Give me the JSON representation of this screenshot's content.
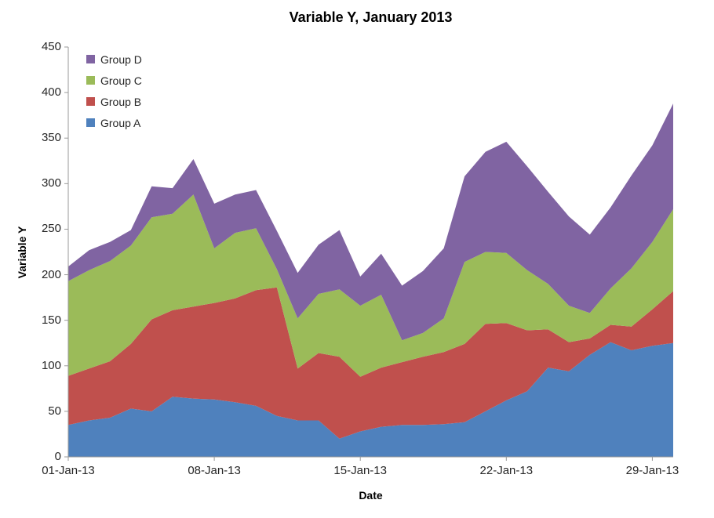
{
  "title": "Variable Y, January 2013",
  "axes": {
    "y": {
      "label": "Variable Y",
      "min": 0,
      "max": 450,
      "step": 50,
      "ticks": [
        0,
        50,
        100,
        150,
        200,
        250,
        300,
        350,
        400,
        450
      ]
    },
    "x": {
      "label": "Date",
      "tick_labels": [
        "01-Jan-13",
        "08-Jan-13",
        "15-Jan-13",
        "22-Jan-13",
        "29-Jan-13"
      ],
      "tick_days": [
        1,
        8,
        15,
        22,
        29
      ]
    }
  },
  "legend": {
    "items": [
      {
        "label": "Group D",
        "color": "#8064A2"
      },
      {
        "label": "Group C",
        "color": "#9BBB59"
      },
      {
        "label": "Group B",
        "color": "#C0504D"
      },
      {
        "label": "Group A",
        "color": "#4F81BD"
      }
    ]
  },
  "style": {
    "axis_line_color": "#9a9a9a",
    "background": "#ffffff"
  },
  "chart_data": {
    "type": "area",
    "stacked": true,
    "title": "Variable Y, January 2013",
    "xlabel": "Date",
    "ylabel": "Variable Y",
    "ylim": [
      0,
      450
    ],
    "grid": false,
    "legend_position": "top-left-inside",
    "x": [
      "01-Jan-13",
      "02-Jan-13",
      "03-Jan-13",
      "04-Jan-13",
      "05-Jan-13",
      "06-Jan-13",
      "07-Jan-13",
      "08-Jan-13",
      "09-Jan-13",
      "10-Jan-13",
      "11-Jan-13",
      "12-Jan-13",
      "13-Jan-13",
      "14-Jan-13",
      "15-Jan-13",
      "16-Jan-13",
      "17-Jan-13",
      "18-Jan-13",
      "19-Jan-13",
      "20-Jan-13",
      "21-Jan-13",
      "22-Jan-13",
      "23-Jan-13",
      "24-Jan-13",
      "25-Jan-13",
      "26-Jan-13",
      "27-Jan-13",
      "28-Jan-13",
      "29-Jan-13",
      "30-Jan-13"
    ],
    "series": [
      {
        "name": "Group A",
        "color": "#4F81BD",
        "values": [
          35,
          40,
          43,
          53,
          50,
          66,
          64,
          63,
          60,
          56,
          45,
          40,
          40,
          20,
          28,
          33,
          35,
          35,
          36,
          38,
          50,
          62,
          72,
          98,
          94,
          112,
          126,
          117,
          122,
          125
        ]
      },
      {
        "name": "Group B",
        "color": "#C0504D",
        "values": [
          54,
          57,
          62,
          71,
          101,
          95,
          101,
          106,
          114,
          127,
          141,
          57,
          74,
          90,
          60,
          65,
          69,
          75,
          79,
          86,
          96,
          85,
          67,
          42,
          32,
          18,
          19,
          26,
          40,
          57
        ]
      },
      {
        "name": "Group C",
        "color": "#9BBB59",
        "values": [
          104,
          108,
          110,
          108,
          112,
          106,
          123,
          60,
          72,
          68,
          20,
          55,
          65,
          74,
          78,
          80,
          24,
          26,
          37,
          90,
          79,
          77,
          66,
          50,
          40,
          28,
          40,
          64,
          74,
          90
        ]
      },
      {
        "name": "Group D",
        "color": "#8064A2",
        "values": [
          16,
          22,
          21,
          17,
          34,
          28,
          39,
          49,
          42,
          42,
          42,
          50,
          54,
          65,
          32,
          45,
          60,
          68,
          77,
          94,
          110,
          122,
          114,
          101,
          98,
          86,
          89,
          102,
          106,
          116
        ]
      }
    ]
  }
}
